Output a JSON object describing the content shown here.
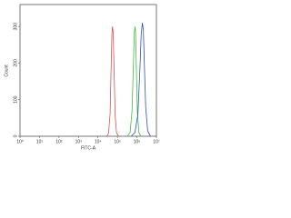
{
  "chart_data": {
    "type": "line",
    "x_scale": "log",
    "xlabel": "FITC-A",
    "ylabel": "Count",
    "xlim": [
      1,
      10000000
    ],
    "xticks": [
      {
        "value": 1,
        "label": "10⁰"
      },
      {
        "value": 10,
        "label": "10¹"
      },
      {
        "value": 100,
        "label": "10²"
      },
      {
        "value": 1000,
        "label": "10³"
      },
      {
        "value": 10000,
        "label": "10⁴"
      },
      {
        "value": 100000,
        "label": "10⁵"
      },
      {
        "value": 1000000,
        "label": "10⁶"
      },
      {
        "value": 10000000,
        "label": "10⁷"
      }
    ],
    "ylim": [
      0,
      360
    ],
    "yticks": [
      0,
      100,
      200,
      300
    ],
    "series": [
      {
        "color": "#e05050",
        "x": [
          28000,
          35000,
          42000,
          48000,
          52000,
          56000,
          60000,
          66000,
          76000,
          89000,
          112000
        ],
        "values": [
          0,
          8,
          60,
          200,
          280,
          300,
          285,
          200,
          60,
          10,
          0
        ]
      },
      {
        "color": "#40c040",
        "x": [
          316000,
          447000,
          562000,
          661000,
          741000,
          794000,
          851000,
          933000,
          1047000,
          1259000,
          1585000
        ],
        "values": [
          0,
          10,
          70,
          200,
          285,
          300,
          285,
          190,
          70,
          10,
          0
        ]
      },
      {
        "color": "#3050c0",
        "x": [
          501000,
          794000,
          1122000,
          1413000,
          1660000,
          1905000,
          2138000,
          2399000,
          2818000,
          3548000,
          5012000
        ],
        "values": [
          0,
          10,
          60,
          180,
          280,
          310,
          290,
          200,
          80,
          15,
          0
        ]
      }
    ]
  }
}
